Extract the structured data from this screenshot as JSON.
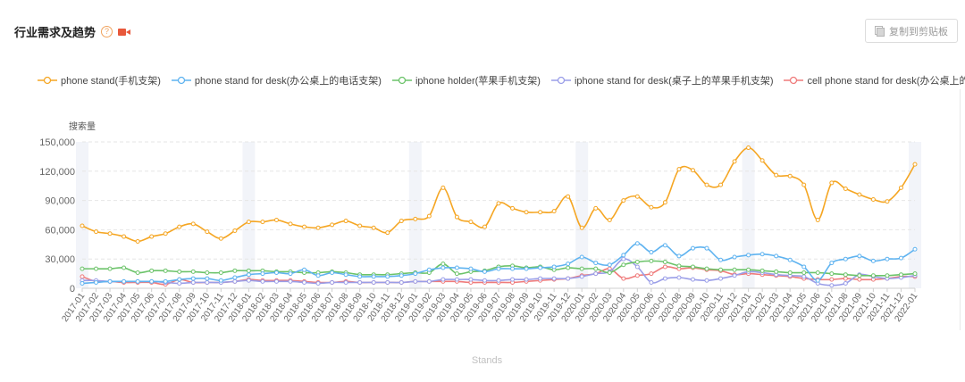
{
  "header": {
    "title": "行业需求及趋势",
    "help_icon": "question-circle-icon",
    "video_icon": "video-camera-icon"
  },
  "toolbar": {
    "copy_label": "复制到剪贴板",
    "copy_icon": "copy-icon"
  },
  "chart_data": {
    "type": "line",
    "ylabel": "搜索量",
    "xlabel": "Stands",
    "ylim": [
      0,
      150000
    ],
    "yticks": [
      "0",
      "30,000",
      "60,000",
      "90,000",
      "120,000",
      "150,000"
    ],
    "legend_position": "top",
    "x": [
      "2017-01",
      "2017-02",
      "2017-03",
      "2017-04",
      "2017-05",
      "2017-06",
      "2017-07",
      "2017-08",
      "2017-09",
      "2017-10",
      "2017-11",
      "2017-12",
      "2018-01",
      "2018-02",
      "2018-03",
      "2018-04",
      "2018-05",
      "2018-06",
      "2018-07",
      "2018-08",
      "2018-09",
      "2018-10",
      "2018-11",
      "2018-12",
      "2019-01",
      "2019-02",
      "2019-03",
      "2019-04",
      "2019-05",
      "2019-06",
      "2019-07",
      "2019-08",
      "2019-09",
      "2019-10",
      "2019-11",
      "2019-12",
      "2020-01",
      "2020-02",
      "2020-03",
      "2020-04",
      "2020-05",
      "2020-06",
      "2020-07",
      "2020-08",
      "2020-09",
      "2020-10",
      "2020-11",
      "2020-12",
      "2021-01",
      "2021-02",
      "2021-03",
      "2021-04",
      "2021-05",
      "2021-06",
      "2021-07",
      "2021-08",
      "2021-09",
      "2021-10",
      "2021-11",
      "2021-12",
      "2022-01"
    ],
    "series": [
      {
        "name": "phone stand(手机支架)",
        "color": "#f5a623",
        "values": [
          64000,
          58000,
          56000,
          53000,
          48000,
          53000,
          56000,
          63000,
          66000,
          58000,
          51000,
          59000,
          68000,
          68000,
          70000,
          66000,
          63000,
          62000,
          65000,
          69000,
          64000,
          62000,
          57000,
          69000,
          71000,
          74000,
          103000,
          73000,
          68000,
          63000,
          87000,
          82000,
          78000,
          78000,
          79000,
          94000,
          62000,
          82000,
          70000,
          90000,
          94000,
          83000,
          88000,
          122000,
          121000,
          106000,
          106000,
          130000,
          144000,
          131000,
          116000,
          115000,
          106000,
          70000,
          108000,
          102000,
          96000,
          91000,
          89000,
          103000,
          127000
        ]
      },
      {
        "name": "phone stand for desk(办公桌上的电话支架)",
        "color": "#5fb3f0",
        "values": [
          5000,
          6000,
          7000,
          7000,
          7000,
          7000,
          7000,
          9000,
          10000,
          10000,
          8000,
          11000,
          14000,
          15000,
          16000,
          15000,
          19000,
          13000,
          16000,
          14000,
          12000,
          12000,
          12000,
          13000,
          15000,
          19000,
          21000,
          21000,
          20000,
          17000,
          20000,
          20000,
          20000,
          21000,
          22000,
          25000,
          32000,
          26000,
          24000,
          34000,
          46000,
          37000,
          44000,
          33000,
          41000,
          41000,
          29000,
          32000,
          34000,
          35000,
          33000,
          29000,
          22000,
          8000,
          26000,
          30000,
          33000,
          28000,
          30000,
          31000,
          40000
        ]
      },
      {
        "name": "iphone holder(苹果手机支架)",
        "color": "#6cc36a",
        "values": [
          20000,
          20000,
          20000,
          21000,
          16000,
          18000,
          18000,
          17000,
          17000,
          16000,
          16000,
          18000,
          18000,
          18000,
          17000,
          17000,
          16000,
          16000,
          17000,
          16000,
          14000,
          14000,
          14000,
          15000,
          16000,
          16000,
          25000,
          15000,
          17000,
          18000,
          22000,
          23000,
          21000,
          22000,
          19000,
          21000,
          20000,
          20000,
          16000,
          24000,
          27000,
          28000,
          27000,
          23000,
          22000,
          20000,
          19000,
          19000,
          19000,
          18000,
          17000,
          16000,
          16000,
          16000,
          15000,
          14000,
          13000,
          13000,
          13000,
          14000,
          15000
        ]
      },
      {
        "name": "iphone stand for desk(桌子上的苹果手机支架)",
        "color": "#9a9ee8",
        "values": [
          8000,
          8000,
          7000,
          7000,
          7000,
          7000,
          6000,
          5000,
          6000,
          6000,
          6000,
          7000,
          8000,
          7000,
          7000,
          7000,
          6000,
          5000,
          6000,
          6000,
          6000,
          6000,
          6000,
          6000,
          7000,
          7000,
          9000,
          9000,
          9000,
          8000,
          8000,
          9000,
          9000,
          10000,
          10000,
          10000,
          12000,
          15000,
          17000,
          30000,
          22000,
          6000,
          10000,
          11000,
          9000,
          8000,
          10000,
          13000,
          17000,
          16000,
          14000,
          13000,
          12000,
          5000,
          3000,
          5000,
          14000,
          12000,
          10000,
          11000,
          13000
        ]
      },
      {
        "name": "cell phone stand for desk(办公桌上的手机支架)",
        "color": "#ef7b7b",
        "values": [
          12000,
          7000,
          7000,
          6000,
          6000,
          6000,
          4000,
          9000,
          6000,
          6000,
          6000,
          7000,
          9000,
          8000,
          8000,
          8000,
          7000,
          6000,
          6000,
          7000,
          6000,
          6000,
          6000,
          6000,
          7000,
          7000,
          7000,
          7000,
          6000,
          6000,
          6000,
          6000,
          7000,
          8000,
          9000,
          10000,
          13000,
          15000,
          20000,
          10000,
          13000,
          15000,
          22000,
          20000,
          21000,
          19000,
          18000,
          14000,
          15000,
          14000,
          13000,
          12000,
          10000,
          9000,
          9000,
          10000,
          9000,
          9000,
          10000,
          12000,
          12000
        ]
      }
    ]
  }
}
